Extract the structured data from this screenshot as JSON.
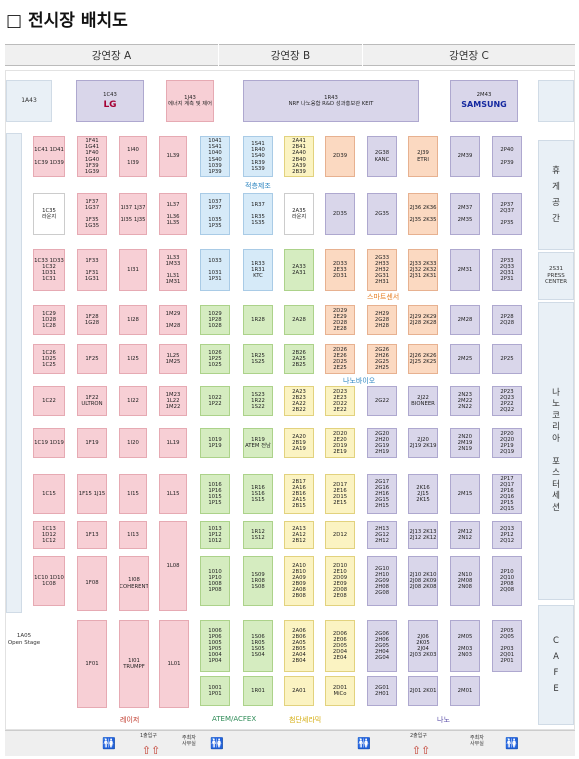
{
  "title": "□ 전시장 배치도",
  "halls": [
    "강연장 A",
    "강연장 B",
    "강연장 C"
  ],
  "side": {
    "a43": "1A43",
    "rest": "휴\n게\n공\n간",
    "press": "2S31\nPRESS\nCENTER",
    "poster": "나\n노\n코\n리\n아\n\n포\n스\n터\n세\n션",
    "cafe": "C\nA\nF\nE",
    "open": "1A05\nOpen Stage"
  },
  "sections": {
    "jeokcheung": "적층제조",
    "smart": "스마트센서",
    "nanobio": "나노바이오"
  },
  "bottomLabels": {
    "laser": "레이저",
    "atem": "ATEM/ACFEX",
    "cheomdan": "첨단세라믹",
    "nano": "나노"
  },
  "entrances": {
    "e1": "1출입구",
    "e2": "2출입구",
    "office1": "주최자\n사무실",
    "office2": "주최자\n사무실"
  },
  "booths": [
    {
      "id": "1C43",
      "label": "1C43",
      "logo": "LG",
      "c": "pu"
    },
    {
      "id": "1J43",
      "label": "1J43\n에너지 계측 및 제어",
      "c": "pk"
    },
    {
      "id": "1R43",
      "label": "1R43\nNRF  나노융합 R&D 성과홍보관  KEIT",
      "c": "pu"
    },
    {
      "id": "2M43",
      "label": "2M43",
      "logo": "SAMSUNG",
      "c": "pu"
    },
    {
      "id": "c1",
      "label": "1C41 1D41\n\n1C39 1D39",
      "c": "pk"
    },
    {
      "id": "c2",
      "label": "1F41 1G41\n1F40 1G40\n1F39 1G39",
      "c": "pk"
    },
    {
      "id": "c3",
      "label": "1I40\n\n1I39",
      "c": "pk"
    },
    {
      "id": "c4",
      "label": "1L39",
      "c": "pk"
    },
    {
      "id": "c5",
      "label": "1041  1S41\n1040  1S40\n1039 1P39",
      "c": "lb"
    },
    {
      "id": "c6",
      "label": "1S41\n1R40 1S40\n1R39 1S39",
      "c": "lb"
    },
    {
      "id": "c7",
      "label": "2A41 2B41\n2A40 2B40\n2A39 2B39",
      "c": "yl"
    },
    {
      "id": "c8",
      "label": "2D39",
      "c": "or"
    },
    {
      "id": "c9",
      "label": "2G38\nKANC",
      "c": "pu"
    },
    {
      "id": "c10",
      "label": "2J39\nETRI",
      "c": "or"
    },
    {
      "id": "c11",
      "label": "2M39",
      "c": "pu"
    },
    {
      "id": "c12",
      "label": "2P40\n\n2P39",
      "c": "pu"
    },
    {
      "id": "d1",
      "label": "1C35\n라운지",
      "c": "wh"
    },
    {
      "id": "d2",
      "label": "1F37 1G37\n\n1F35 1G35",
      "c": "pk"
    },
    {
      "id": "d3",
      "label": "1I37 1J37\n\n1I35 1J35",
      "c": "pk"
    },
    {
      "id": "d4",
      "label": "1L37\n\n1L36\n1L35",
      "c": "pk"
    },
    {
      "id": "d5",
      "label": "1037 1P37\n\n1035 1P35",
      "c": "lb"
    },
    {
      "id": "d6",
      "label": "1R37\n\n1R35 1S35",
      "c": "lb"
    },
    {
      "id": "d7",
      "label": "2A35\n라운지",
      "c": "wh"
    },
    {
      "id": "d8",
      "label": "2D35",
      "c": "pu"
    },
    {
      "id": "d9",
      "label": "2G35",
      "c": "pu"
    },
    {
      "id": "d10",
      "label": "2J36 2K36\n\n2J35 2K35",
      "c": "or"
    },
    {
      "id": "d11",
      "label": "2M37\n\n2M35",
      "c": "pu"
    },
    {
      "id": "d12",
      "label": "2P37 2Q37\n\n2P35",
      "c": "pu"
    },
    {
      "id": "e1",
      "label": "1C33 1D33\n1C32\n1D31\n1C31",
      "c": "pk"
    },
    {
      "id": "e2",
      "label": "1F33\n\n1F31 1G31",
      "c": "pk"
    },
    {
      "id": "e3",
      "label": "1I31",
      "c": "pk"
    },
    {
      "id": "e4",
      "label": "1L33 1M33\n\n1L31 1M31",
      "c": "pk"
    },
    {
      "id": "e5",
      "label": "1033\n\n1031 1P31",
      "c": "lb"
    },
    {
      "id": "e6",
      "label": "1R33\n1R31\nKTC",
      "c": "lb"
    },
    {
      "id": "e7",
      "label": "2A33\n2A31",
      "c": "gn"
    },
    {
      "id": "e8",
      "label": "2D33 2E33\n2D31",
      "c": "or"
    },
    {
      "id": "e9",
      "label": "2G33 2H33\n2H32\n2G31 2H31",
      "c": "or"
    },
    {
      "id": "e10",
      "label": "2J33 2K33\n2J32 2K32\n2J31 2K31",
      "c": "or"
    },
    {
      "id": "e11",
      "label": "2M31",
      "c": "pu"
    },
    {
      "id": "e12",
      "label": "2P33 2Q33\n2Q31\n2P31",
      "c": "pu"
    },
    {
      "id": "f1",
      "label": "1C29\n1D28\n1C28",
      "c": "pk"
    },
    {
      "id": "f2",
      "label": "1F28 1G28",
      "c": "pk"
    },
    {
      "id": "f3",
      "label": "1I28",
      "c": "pk"
    },
    {
      "id": "f4",
      "label": "1M29\n\n1M28",
      "c": "pk"
    },
    {
      "id": "f5",
      "label": "1029\n1P28\n1028",
      "c": "gn"
    },
    {
      "id": "f6",
      "label": "1R28",
      "c": "gn"
    },
    {
      "id": "f7",
      "label": "2A28",
      "c": "gn"
    },
    {
      "id": "f8",
      "label": "2D29 2E29\n2D28 2E28",
      "c": "or"
    },
    {
      "id": "f9",
      "label": "2H29\n2G28\n2H28",
      "c": "or"
    },
    {
      "id": "f10",
      "label": "2J29 2K29\n2J28 2K28",
      "c": "or"
    },
    {
      "id": "f11",
      "label": "2M28",
      "c": "pu"
    },
    {
      "id": "f12",
      "label": "2P28 2Q28",
      "c": "pu"
    },
    {
      "id": "g1",
      "label": "1C26\n1D25\n1C25",
      "c": "pk"
    },
    {
      "id": "g2",
      "label": "1F25",
      "c": "pk"
    },
    {
      "id": "g3",
      "label": "1I25",
      "c": "pk"
    },
    {
      "id": "g4",
      "label": "1L25 1M25",
      "c": "pk"
    },
    {
      "id": "g5",
      "label": "1026\n1P25\n1025",
      "c": "gn"
    },
    {
      "id": "g6",
      "label": "1R25 1S25",
      "c": "gn"
    },
    {
      "id": "g7",
      "label": "2B26\n2A25 2B25",
      "c": "gn"
    },
    {
      "id": "g8",
      "label": "2D26 2E26\n2D25 2E25",
      "c": "or"
    },
    {
      "id": "g9",
      "label": "2G26 2H26\n2G25 2H25",
      "c": "or"
    },
    {
      "id": "g10",
      "label": "2J26 2K26\n2J25 2K25",
      "c": "or"
    },
    {
      "id": "g11",
      "label": "2M25",
      "c": "pu"
    },
    {
      "id": "g12",
      "label": "2P25",
      "c": "pu"
    },
    {
      "id": "h1",
      "label": "1C22",
      "c": "pk"
    },
    {
      "id": "h2",
      "label": "1F22\nULTRON",
      "c": "pk"
    },
    {
      "id": "h3",
      "label": "1I22",
      "c": "pk"
    },
    {
      "id": "h4",
      "label": "1M23\n1L22\n1M22",
      "c": "pk"
    },
    {
      "id": "h5",
      "label": "1022 1P22",
      "c": "gn"
    },
    {
      "id": "h6",
      "label": "1S23\n1R22\n1S22",
      "c": "gn"
    },
    {
      "id": "h7",
      "label": "2A23 2B23\n2A22 2B22",
      "c": "yl"
    },
    {
      "id": "h8",
      "label": "2D23 2E23\n2D22 2E22",
      "c": "yl"
    },
    {
      "id": "h9",
      "label": "2G22",
      "c": "pu"
    },
    {
      "id": "h10",
      "label": "2J22\nBIONEER",
      "c": "pu"
    },
    {
      "id": "h11",
      "label": "2N23\n2M22\n2N22",
      "c": "pu"
    },
    {
      "id": "h12",
      "label": "2P23 2Q23\n2P22 2Q22",
      "c": "pu"
    },
    {
      "id": "i1",
      "label": "1C19 1D19",
      "c": "pk"
    },
    {
      "id": "i2",
      "label": "1F19",
      "c": "pk"
    },
    {
      "id": "i3",
      "label": "1I20",
      "c": "pk"
    },
    {
      "id": "i4",
      "label": "1L19",
      "c": "pk"
    },
    {
      "id": "i5",
      "label": "1019 1P19",
      "c": "gn"
    },
    {
      "id": "i6",
      "label": "1R19\nATEM 전남",
      "c": "gn"
    },
    {
      "id": "i7",
      "label": "2A20\n2B19\n2A19",
      "c": "yl"
    },
    {
      "id": "i8",
      "label": "2D20 2E20\n2D19 2E19",
      "c": "yl"
    },
    {
      "id": "i9",
      "label": "2G20 2H20\n2G19 2H19",
      "c": "pu"
    },
    {
      "id": "i10",
      "label": "2J20\n2J19 2K19",
      "c": "pu"
    },
    {
      "id": "i11",
      "label": "2N20\n2M19\n2N19",
      "c": "pu"
    },
    {
      "id": "i12",
      "label": "2P20 2Q20\n2P19 2Q19",
      "c": "pu"
    },
    {
      "id": "j1",
      "label": "1C15",
      "c": "pk"
    },
    {
      "id": "j2",
      "label": "1F15  1J15",
      "c": "pk"
    },
    {
      "id": "j3",
      "label": "1I15",
      "c": "pk"
    },
    {
      "id": "j4",
      "label": "1L15",
      "c": "pk"
    },
    {
      "id": "j5",
      "label": "1016 1P16\n1015 1P15",
      "c": "gn"
    },
    {
      "id": "j6",
      "label": "1R16 1S16\n1S15",
      "c": "gn"
    },
    {
      "id": "j7",
      "label": "2B17\n2A16\n2B16\n2A15 2B15",
      "c": "yl"
    },
    {
      "id": "j8",
      "label": "2D17\n2E16\n2D15 2E15",
      "c": "yl"
    },
    {
      "id": "j9",
      "label": "2G17\n2G16 2H16\n2G15 2H15",
      "c": "pu"
    },
    {
      "id": "j10",
      "label": "2K16\n2J15\n2K15",
      "c": "pu"
    },
    {
      "id": "j11",
      "label": "2M15",
      "c": "pu"
    },
    {
      "id": "j12",
      "label": "2P17 2Q17\n2P16 2Q16\n2P15 2Q15",
      "c": "pu"
    },
    {
      "id": "k1",
      "label": "1C13\n1D12\n1C12",
      "c": "pk"
    },
    {
      "id": "k2",
      "label": "1F13",
      "c": "pk"
    },
    {
      "id": "k3",
      "label": "1I13",
      "c": "pk"
    },
    {
      "id": "k4",
      "label": "1L08",
      "c": "pk"
    },
    {
      "id": "k5",
      "label": "1013\n1P12\n1012",
      "c": "gn"
    },
    {
      "id": "k6",
      "label": "1R12\n1S12",
      "c": "gn"
    },
    {
      "id": "k7",
      "label": "2A13\n2A12 2B12",
      "c": "yl"
    },
    {
      "id": "k8",
      "label": "2D12",
      "c": "yl"
    },
    {
      "id": "k9",
      "label": "2H13\n2G12\n2H12",
      "c": "pu"
    },
    {
      "id": "k10",
      "label": "2J13 2K13\n2J12 2K12",
      "c": "pu"
    },
    {
      "id": "k11",
      "label": "2M12 2N12",
      "c": "pu"
    },
    {
      "id": "k12",
      "label": "2Q13\n2P12\n2Q12",
      "c": "pu"
    },
    {
      "id": "l1",
      "label": "1C10 1D10\n1C08",
      "c": "pk"
    },
    {
      "id": "l2",
      "label": "1F08",
      "c": "pk"
    },
    {
      "id": "l3",
      "label": "1I08\nCOHERENT",
      "c": "pk"
    },
    {
      "id": "l5",
      "label": "1010 1P10\n1008 1P08",
      "c": "gn"
    },
    {
      "id": "l6",
      "label": "1S09\n1R08\n1S08",
      "c": "gn"
    },
    {
      "id": "l7",
      "label": "2A10 2B10\n2A09 2B09\n2A08 2B08",
      "c": "yl"
    },
    {
      "id": "l8",
      "label": "2D10 2E10\n2D09\n2E09\n2D08 2E08",
      "c": "yl"
    },
    {
      "id": "l9",
      "label": "2G10 2H10\n2G09\n2H08\n2G08",
      "c": "pu"
    },
    {
      "id": "l10",
      "label": "2J10 2K10\n2J08 2K09\n2J08 2K08",
      "c": "pu"
    },
    {
      "id": "l11",
      "label": "2N10\n2M08\n2N08",
      "c": "pu"
    },
    {
      "id": "l12",
      "label": "2P10 2Q10\n2P08 2Q08",
      "c": "pu"
    },
    {
      "id": "m2",
      "label": "1F01",
      "c": "pk"
    },
    {
      "id": "m3",
      "label": "1I01\nTRUMPF",
      "c": "pk"
    },
    {
      "id": "m4",
      "label": "1L01",
      "c": "pk"
    },
    {
      "id": "m5",
      "label": "1006 1P06\n1005 1P05\n1004 1P04",
      "c": "gn"
    },
    {
      "id": "m6",
      "label": "1S06\n1R05 1S05\n1S04",
      "c": "gn"
    },
    {
      "id": "m7",
      "label": "2A06 2B06\n2A05 2B05\n2A04 2B04",
      "c": "yl"
    },
    {
      "id": "m8",
      "label": "2D06 2E06\n2D05\n2D04 2E04",
      "c": "yl"
    },
    {
      "id": "m9",
      "label": "2G06 2H06\n2G05\n2H04\n2G04",
      "c": "pu"
    },
    {
      "id": "m10",
      "label": "2J06\n2K05\n2J04\n2J03 2K03",
      "c": "pu"
    },
    {
      "id": "m11",
      "label": "2M05\n\n2M03 2N03",
      "c": "pu"
    },
    {
      "id": "m12",
      "label": "2P05 2Q05\n\n2P03\n2Q01\n2P01",
      "c": "pu"
    },
    {
      "id": "n5",
      "label": "1001 1P01",
      "c": "gn"
    },
    {
      "id": "n6",
      "label": "1R01",
      "c": "gn"
    },
    {
      "id": "n7",
      "label": "2A01",
      "c": "yl"
    },
    {
      "id": "n8",
      "label": "2D01\nMiCo",
      "c": "yl"
    },
    {
      "id": "n9",
      "label": "2G01 2H01",
      "c": "pu"
    },
    {
      "id": "n10",
      "label": "2J01 2K01",
      "c": "pu"
    },
    {
      "id": "n11",
      "label": "2M01",
      "c": "pu"
    }
  ]
}
